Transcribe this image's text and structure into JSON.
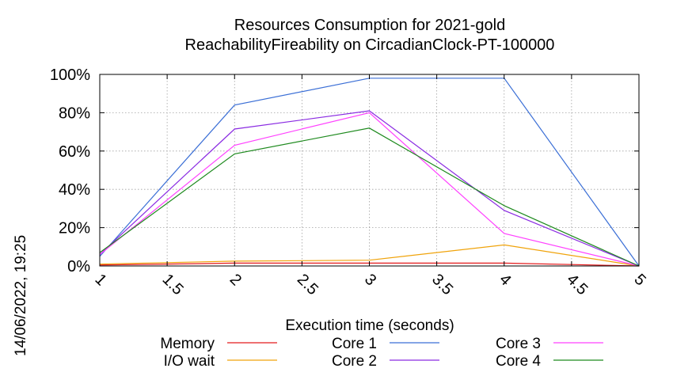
{
  "chart_data": {
    "type": "line",
    "title": [
      "Resources Consumption for 2021-gold",
      "ReachabilityFireability on CircadianClock-PT-100000"
    ],
    "xlabel": "Execution time (seconds)",
    "ylabel": "",
    "xlim": [
      1,
      5
    ],
    "ylim": [
      0,
      100
    ],
    "x_ticks": [
      "1",
      "1.5",
      "2",
      "2.5",
      "3",
      "3.5",
      "4",
      "4.5",
      "5"
    ],
    "y_ticks": [
      "0%",
      "20%",
      "40%",
      "60%",
      "80%",
      "100%"
    ],
    "grid": true,
    "legend_position": "bottom",
    "x": [
      1,
      2,
      3,
      4,
      5
    ],
    "series": [
      {
        "name": "Memory",
        "color": "#e41a1c",
        "values": [
          0.5,
          1.5,
          1.5,
          1.5,
          0
        ]
      },
      {
        "name": "I/O wait",
        "color": "#f0a30a",
        "values": [
          1,
          2.5,
          3,
          11,
          0
        ]
      },
      {
        "name": "Core 1",
        "color": "#3b6fd6",
        "values": [
          5,
          84,
          98,
          98,
          0
        ]
      },
      {
        "name": "Core 2",
        "color": "#8a2be2",
        "values": [
          6,
          71.5,
          81,
          29,
          0
        ]
      },
      {
        "name": "Core 3",
        "color": "#ff40ff",
        "values": [
          6,
          63,
          80,
          17,
          0
        ]
      },
      {
        "name": "Core 4",
        "color": "#1e8a1e",
        "values": [
          7,
          58.5,
          72,
          31.5,
          0
        ]
      }
    ]
  },
  "timestamp": "14/06/2022, 19:25"
}
